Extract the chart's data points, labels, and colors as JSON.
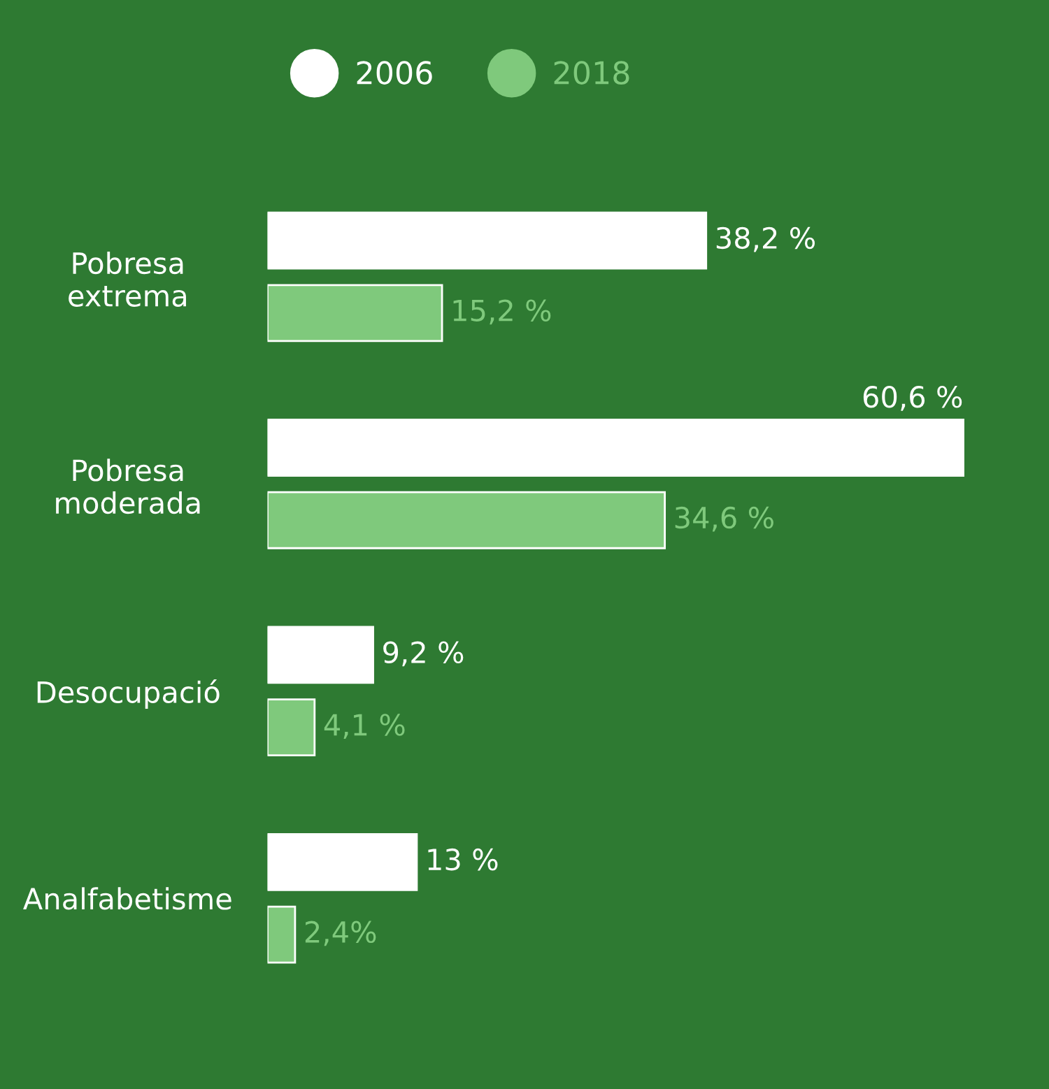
{
  "chart_data": {
    "type": "bar",
    "orientation": "horizontal",
    "categories": [
      "Pobresa\nextrema",
      "Pobresa\nmoderada",
      "Desocupació",
      "Analfabetisme"
    ],
    "series": [
      {
        "name": "2006",
        "color": "#ffffff",
        "values": [
          38.2,
          60.6,
          9.2,
          13
        ],
        "value_labels": [
          "38,2 %",
          "60,6 %",
          "9,2 %",
          "13 %"
        ]
      },
      {
        "name": "2018",
        "color": "#7fc97c",
        "values": [
          15.2,
          34.6,
          4.1,
          2.4
        ],
        "value_labels": [
          "15,2 %",
          "34,6 %",
          "4,1 %",
          "2,4%"
        ]
      }
    ],
    "legend": "top"
  }
}
